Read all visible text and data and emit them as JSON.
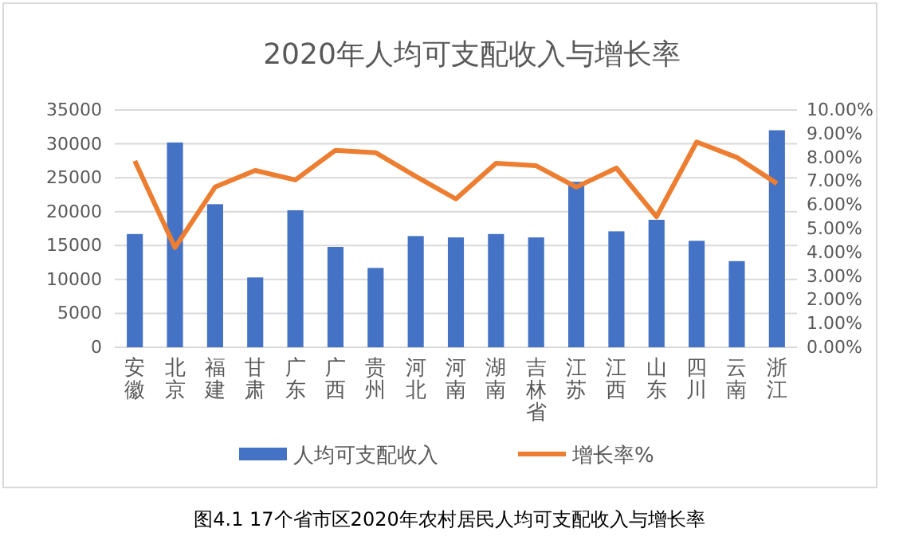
{
  "chart_data": {
    "type": "bar",
    "title": "2020年人均可支配收入与增长率",
    "categories": [
      "安徽",
      "北京",
      "福建",
      "甘肃",
      "广东",
      "广西",
      "贵州",
      "河北",
      "河南",
      "湖南",
      "吉林省",
      "江苏",
      "江西",
      "山东",
      "四川",
      "云南",
      "浙江"
    ],
    "series": [
      {
        "name": "人均可支配收入",
        "color": "#4472c4",
        "values": [
          16700,
          30200,
          21100,
          10300,
          20200,
          14800,
          11700,
          16400,
          16200,
          16700,
          16200,
          24400,
          17100,
          18800,
          15700,
          12700,
          32000
        ]
      },
      {
        "name": "增长率%",
        "type": "line",
        "axis": "y2",
        "color": "#ed7d31",
        "values": [
          7.85,
          4.2,
          6.75,
          7.45,
          7.05,
          8.3,
          8.2,
          7.2,
          6.25,
          7.75,
          7.65,
          6.75,
          7.55,
          5.5,
          8.65,
          8.0,
          6.9
        ]
      }
    ],
    "ylim": [
      0,
      35000
    ],
    "yticks": [
      0,
      5000,
      10000,
      15000,
      20000,
      25000,
      30000,
      35000
    ],
    "y2lim": [
      0,
      10
    ],
    "y2ticks": [
      {
        "value": 0,
        "label": "0.00%"
      },
      {
        "value": 1,
        "label": "1.00%"
      },
      {
        "value": 2,
        "label": "2.00%"
      },
      {
        "value": 3,
        "label": "3.00%"
      },
      {
        "value": 4,
        "label": "4.00%"
      },
      {
        "value": 5,
        "label": "5.00%"
      },
      {
        "value": 6,
        "label": "6.00%"
      },
      {
        "value": 7,
        "label": "7.00%"
      },
      {
        "value": 8,
        "label": "8.00%"
      },
      {
        "value": 9,
        "label": "9.00%"
      },
      {
        "value": 10,
        "label": "10.00%"
      }
    ],
    "grid": "y",
    "legend": "bottom",
    "marker": "none",
    "line_style": "solid",
    "annotations": [
      "图4.1 17个省市区2020年农村居民人均可支配收入与增长率"
    ]
  }
}
